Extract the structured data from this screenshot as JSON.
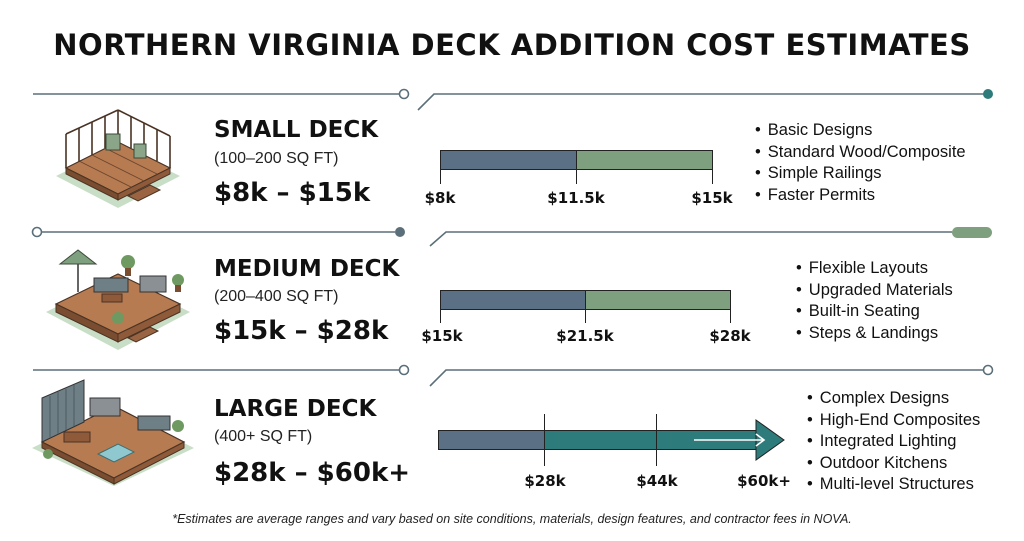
{
  "title": "NORTHERN VIRGINIA DECK ADDITION COST ESTIMATES",
  "colors": {
    "accent_teal": "#2e7b7b",
    "bar_blue": "#5b6f85",
    "bar_green": "#7fa07e",
    "line_slate": "#5b6f7a"
  },
  "tiers": [
    {
      "name": "SMALL DECK",
      "size": "(100–200 SQ FT)",
      "range": "$8k – $15k",
      "icon": "small-deck-illustration",
      "scale": {
        "min": 8,
        "max": 15
      },
      "segments": [
        {
          "from": 8,
          "to": 11.5,
          "color": "blue"
        },
        {
          "from": 11.5,
          "to": 15,
          "color": "green"
        }
      ],
      "ticks": [
        {
          "value": 8,
          "label": "$8k"
        },
        {
          "value": 11.5,
          "label": "$11.5k"
        },
        {
          "value": 15,
          "label": "$15k"
        }
      ],
      "features": [
        "Basic Designs",
        "Standard Wood/Composite",
        "Simple Railings",
        "Faster Permits"
      ]
    },
    {
      "name": "MEDIUM DECK",
      "size": "(200–400 SQ FT)",
      "range": "$15k – $28k",
      "icon": "medium-deck-illustration",
      "scale": {
        "min": 15,
        "max": 28
      },
      "segments": [
        {
          "from": 15,
          "to": 21.5,
          "color": "blue"
        },
        {
          "from": 21.5,
          "to": 28,
          "color": "green"
        }
      ],
      "ticks": [
        {
          "value": 15,
          "label": "$15k"
        },
        {
          "value": 21.5,
          "label": "$21.5k"
        },
        {
          "value": 28,
          "label": "$28k"
        }
      ],
      "features": [
        "Flexible Layouts",
        "Upgraded Materials",
        "Built-in Seating",
        "Steps & Landings"
      ]
    },
    {
      "name": "LARGE DECK",
      "size": "(400+ SQ FT)",
      "range": "$28k – $60k+",
      "icon": "large-deck-illustration",
      "features": [
        "Complex Designs",
        "High-End Composites",
        "Integrated Lighting",
        "Outdoor Kitchens",
        "Multi-level Structures"
      ],
      "ticks": [
        {
          "value": 28,
          "label": "$28k"
        },
        {
          "value": 44,
          "label": "$44k"
        },
        {
          "value": 60,
          "label": "$60k+"
        }
      ],
      "open_ended_arrow": true
    }
  ],
  "footnote": "*Estimates are average ranges and vary based on site conditions, materials, design features, and contractor fees in NOVA."
}
